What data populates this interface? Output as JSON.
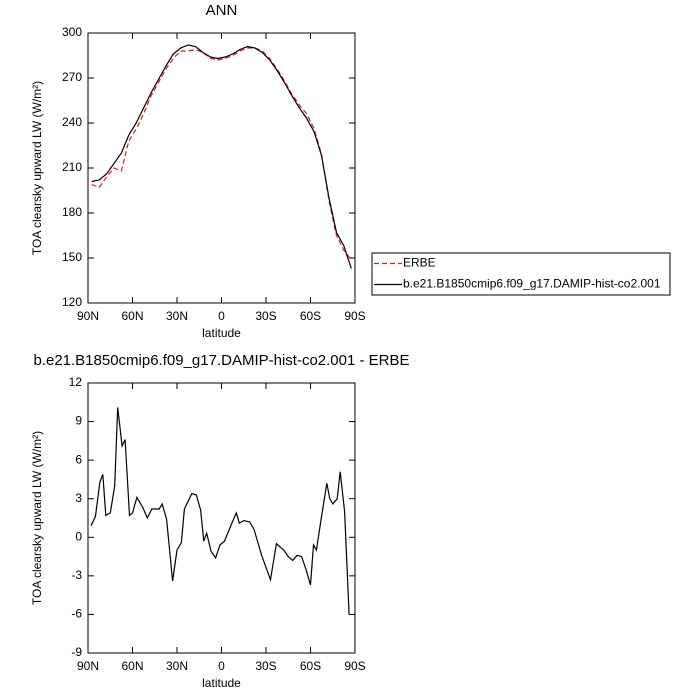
{
  "chart_data": [
    {
      "type": "line",
      "title": "ANN",
      "xlabel": "latitude",
      "ylabel": "TOA clearsky upward LW (W/m²)",
      "x": [
        87.5,
        82.5,
        77.5,
        72.5,
        67.5,
        62.5,
        57.5,
        52.5,
        47.5,
        42.5,
        37.5,
        32.5,
        27.5,
        22.5,
        17.5,
        12.5,
        7.5,
        2.5,
        -2.5,
        -7.5,
        -12.5,
        -17.5,
        -22.5,
        -27.5,
        -32.5,
        -37.5,
        -42.5,
        -47.5,
        -52.5,
        -57.5,
        -62.5,
        -67.5,
        -72.5,
        -77.5,
        -82.5,
        -87.5
      ],
      "series": [
        {
          "name": "ERBE",
          "color": "#e8141c",
          "linestyle": "dashed",
          "values": [
            199,
            197,
            204,
            210,
            208,
            228,
            236,
            246,
            258,
            267,
            276,
            283,
            288,
            288,
            289,
            287,
            283,
            282,
            283,
            285,
            288,
            290,
            290,
            288,
            283,
            276,
            268,
            259,
            252,
            246,
            236,
            219,
            188,
            165,
            155,
            149
          ]
        },
        {
          "name": "b.e21.B1850cmip6.f09_g17.DAMIP-hist-co2.001",
          "color": "#000000",
          "linestyle": "solid",
          "values": [
            201,
            202,
            206,
            213,
            220,
            232,
            240,
            250,
            260,
            269,
            278,
            286,
            290,
            292,
            291,
            287,
            284,
            283,
            284,
            286,
            289,
            291,
            290,
            287,
            282,
            275,
            267,
            258,
            250,
            243,
            234,
            218,
            190,
            167,
            158,
            143
          ]
        }
      ],
      "xlim": [
        90,
        -90
      ],
      "xticks": [
        {
          "value": 90,
          "label": "90N"
        },
        {
          "value": 60,
          "label": "60N"
        },
        {
          "value": 30,
          "label": "30N"
        },
        0,
        {
          "value": -30,
          "label": "30S"
        },
        {
          "value": -60,
          "label": "60S"
        },
        {
          "value": -90,
          "label": "90S"
        }
      ],
      "ylim": [
        120,
        300
      ],
      "yticks": [
        120,
        150,
        180,
        210,
        240,
        270,
        300
      ],
      "legend": "right"
    },
    {
      "type": "line",
      "title": "b.e21.B1850cmip6.f09_g17.DAMIP-hist-co2.001 - ERBE",
      "xlabel": "latitude",
      "ylabel": "TOA clearsky upward LW (W/m²)",
      "x": [
        88,
        85,
        82,
        80,
        78,
        75,
        72,
        70,
        67,
        65,
        62,
        60,
        57,
        53,
        50,
        47,
        42,
        40,
        37,
        33,
        30,
        27,
        25,
        20,
        17,
        14,
        12,
        10,
        7,
        4,
        1,
        -2,
        -7,
        -10,
        -12,
        -15,
        -19,
        -22,
        -27,
        -33,
        -37,
        -40,
        -42,
        -45,
        -48,
        -51,
        -54,
        -57,
        -60,
        -62,
        -64,
        -67,
        -71,
        -73,
        -75,
        -78,
        -80,
        -83,
        -86
      ],
      "values": [
        0.9,
        1.6,
        4.3,
        4.9,
        1.7,
        1.9,
        4,
        10.1,
        7.1,
        7.6,
        1.7,
        1.9,
        3.1,
        2.3,
        1.5,
        2.2,
        2.2,
        2.6,
        1.4,
        -3.4,
        -1,
        -0.4,
        2.2,
        3.4,
        3.3,
        2.1,
        -0.3,
        0.3,
        -1.1,
        -1.6,
        -0.6,
        -0.3,
        1.1,
        1.9,
        1.1,
        1.3,
        1.2,
        0.6,
        -1.4,
        -3.3,
        -0.5,
        -0.8,
        -1,
        -1.5,
        -1.8,
        -1.4,
        -1.5,
        -2.5,
        -3.7,
        -0.6,
        -1,
        1.3,
        4.2,
        3,
        2.6,
        3,
        5.1,
        2,
        -6
      ],
      "color": "#000000",
      "xlim": [
        90,
        -90
      ],
      "xticks": [
        {
          "value": 90,
          "label": "90N"
        },
        {
          "value": 60,
          "label": "60N"
        },
        {
          "value": 30,
          "label": "30N"
        },
        0,
        {
          "value": -30,
          "label": "30S"
        },
        {
          "value": -60,
          "label": "60S"
        },
        {
          "value": -90,
          "label": "90S"
        }
      ],
      "ylim": [
        -9,
        12
      ],
      "yticks": [
        -9,
        -6,
        -3,
        0,
        3,
        6,
        9,
        12
      ]
    }
  ]
}
